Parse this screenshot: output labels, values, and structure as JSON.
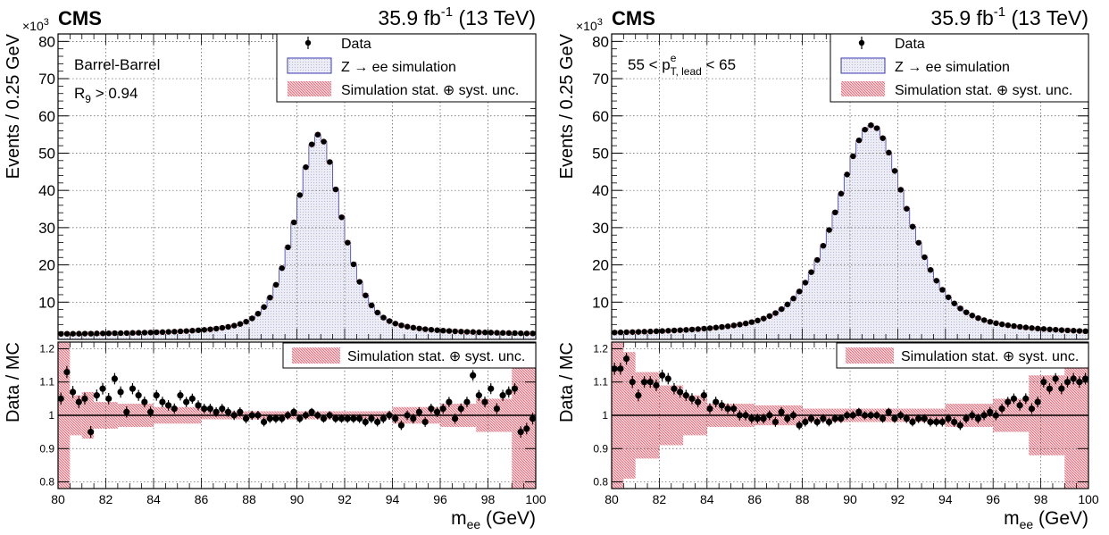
{
  "colors": {
    "data": "#000000",
    "simulation_fill": "#e6e6f2",
    "simulation_line": "#3b3bb3",
    "uncertainty": "#e06070",
    "grid": "#555555"
  },
  "chart_data": [
    {
      "type": "line",
      "experiment": "CMS",
      "lumi": "35.9 fb",
      "lumi_exp": "-1",
      "energy": "(13 TeV)",
      "selection_lines": [
        {
          "text": "Barrel-Barrel",
          "sub": "",
          "sup": "",
          "tail": ""
        },
        {
          "text": "R",
          "sub": "9",
          "sup": "",
          "tail": " > 0.94"
        }
      ],
      "legend": [
        "Data",
        "Z → ee simulation",
        "Simulation stat. ⊕ syst. unc."
      ],
      "ratio_legend": "Simulation stat. ⊕ syst. unc.",
      "xlabel": "m",
      "xlabel_sub": "ee",
      "xlabel_tail": " (GeV)",
      "ylabel": "Events / 0.25 GeV",
      "ratio_ylabel": "Data / MC",
      "y_multiplier": "×10",
      "y_multiplier_exp": "3",
      "xlim": [
        80,
        100
      ],
      "ylim": [
        0,
        82
      ],
      "ratio_ylim": [
        0.78,
        1.22
      ],
      "x_ticks": [
        80,
        82,
        84,
        86,
        88,
        90,
        92,
        94,
        96,
        98,
        100
      ],
      "y_ticks": [
        10,
        20,
        30,
        40,
        50,
        60,
        70,
        80
      ],
      "ratio_ticks": [
        0.8,
        0.9,
        1,
        1.1,
        1.2
      ],
      "ratio_tick_labels": [
        "0.8",
        "0.9",
        "1",
        "1.1",
        "1.2"
      ],
      "shape": {
        "peak": 55,
        "mean": 90.9,
        "gamma": 2.1,
        "sigma": 1.05,
        "mix": 0.55,
        "base": 1.2
      },
      "ratio_points": [
        {
          "x": 80.12,
          "y": 1.05
        },
        {
          "x": 80.37,
          "y": 1.13
        },
        {
          "x": 80.62,
          "y": 1.07
        },
        {
          "x": 80.87,
          "y": 1.04
        },
        {
          "x": 81.12,
          "y": 1.05
        },
        {
          "x": 81.37,
          "y": 0.95
        },
        {
          "x": 81.62,
          "y": 1.06
        },
        {
          "x": 81.87,
          "y": 1.08
        },
        {
          "x": 82.12,
          "y": 1.05
        },
        {
          "x": 82.37,
          "y": 1.11
        },
        {
          "x": 82.62,
          "y": 1.07
        },
        {
          "x": 82.87,
          "y": 1.01
        },
        {
          "x": 83.12,
          "y": 1.08
        },
        {
          "x": 83.37,
          "y": 1.06
        },
        {
          "x": 83.62,
          "y": 1.04
        },
        {
          "x": 83.87,
          "y": 1.01
        },
        {
          "x": 84.12,
          "y": 1.06
        },
        {
          "x": 84.37,
          "y": 1.04
        },
        {
          "x": 84.62,
          "y": 1.03
        },
        {
          "x": 84.87,
          "y": 1.02
        },
        {
          "x": 85.12,
          "y": 1.06
        },
        {
          "x": 85.37,
          "y": 1.04
        },
        {
          "x": 85.62,
          "y": 1.05
        },
        {
          "x": 85.87,
          "y": 1.03
        },
        {
          "x": 86.12,
          "y": 1.02
        },
        {
          "x": 86.37,
          "y": 1.02
        },
        {
          "x": 86.62,
          "y": 1.01
        },
        {
          "x": 86.87,
          "y": 1.02
        },
        {
          "x": 87.12,
          "y": 1.01
        },
        {
          "x": 87.37,
          "y": 1.0
        },
        {
          "x": 87.62,
          "y": 1.01
        },
        {
          "x": 87.87,
          "y": 0.99
        },
        {
          "x": 88.12,
          "y": 1.0
        },
        {
          "x": 88.37,
          "y": 1.0
        },
        {
          "x": 88.62,
          "y": 0.98
        },
        {
          "x": 88.87,
          "y": 0.99
        },
        {
          "x": 89.12,
          "y": 0.99
        },
        {
          "x": 89.37,
          "y": 0.99
        },
        {
          "x": 89.62,
          "y": 1.0
        },
        {
          "x": 89.87,
          "y": 1.01
        },
        {
          "x": 90.12,
          "y": 0.99
        },
        {
          "x": 90.37,
          "y": 1.0
        },
        {
          "x": 90.62,
          "y": 1.01
        },
        {
          "x": 90.87,
          "y": 1.0
        },
        {
          "x": 91.12,
          "y": 0.99
        },
        {
          "x": 91.37,
          "y": 1.0
        },
        {
          "x": 91.62,
          "y": 0.99
        },
        {
          "x": 91.87,
          "y": 0.99
        },
        {
          "x": 92.12,
          "y": 0.99
        },
        {
          "x": 92.37,
          "y": 0.99
        },
        {
          "x": 92.62,
          "y": 0.99
        },
        {
          "x": 92.87,
          "y": 0.98
        },
        {
          "x": 93.12,
          "y": 0.99
        },
        {
          "x": 93.37,
          "y": 0.98
        },
        {
          "x": 93.62,
          "y": 0.99
        },
        {
          "x": 93.87,
          "y": 1.0
        },
        {
          "x": 94.12,
          "y": 0.99
        },
        {
          "x": 94.37,
          "y": 0.97
        },
        {
          "x": 94.62,
          "y": 1.0
        },
        {
          "x": 94.87,
          "y": 0.99
        },
        {
          "x": 95.12,
          "y": 1.01
        },
        {
          "x": 95.37,
          "y": 0.98
        },
        {
          "x": 95.62,
          "y": 1.02
        },
        {
          "x": 95.87,
          "y": 1.01
        },
        {
          "x": 96.12,
          "y": 1.02
        },
        {
          "x": 96.37,
          "y": 1.04
        },
        {
          "x": 96.62,
          "y": 0.99
        },
        {
          "x": 96.87,
          "y": 1.02
        },
        {
          "x": 97.12,
          "y": 1.04
        },
        {
          "x": 97.37,
          "y": 1.12
        },
        {
          "x": 97.62,
          "y": 1.06
        },
        {
          "x": 97.87,
          "y": 1.04
        },
        {
          "x": 98.12,
          "y": 1.08
        },
        {
          "x": 98.37,
          "y": 1.02
        },
        {
          "x": 98.62,
          "y": 1.06
        },
        {
          "x": 98.87,
          "y": 1.07
        },
        {
          "x": 99.12,
          "y": 1.08
        },
        {
          "x": 99.37,
          "y": 0.95
        },
        {
          "x": 99.62,
          "y": 0.96
        },
        {
          "x": 99.87,
          "y": 0.99
        }
      ],
      "ratio_band": [
        {
          "x0": 80.0,
          "x1": 80.5,
          "half": 0.22
        },
        {
          "x0": 80.5,
          "x1": 81.0,
          "half": 0.06
        },
        {
          "x0": 81.0,
          "x1": 81.5,
          "half": 0.07
        },
        {
          "x0": 81.5,
          "x1": 82.5,
          "half": 0.04
        },
        {
          "x0": 82.5,
          "x1": 84.0,
          "half": 0.035
        },
        {
          "x0": 84.0,
          "x1": 86.0,
          "half": 0.025
        },
        {
          "x0": 86.0,
          "x1": 94.0,
          "half": 0.012
        },
        {
          "x0": 94.0,
          "x1": 96.0,
          "half": 0.025
        },
        {
          "x0": 96.0,
          "x1": 97.5,
          "half": 0.035
        },
        {
          "x0": 97.5,
          "x1": 99.0,
          "half": 0.05
        },
        {
          "x0": 99.0,
          "x1": 100.0,
          "half": 0.22
        }
      ]
    },
    {
      "type": "line",
      "experiment": "CMS",
      "lumi": "35.9 fb",
      "lumi_exp": "-1",
      "energy": "(13 TeV)",
      "selection_lines": [
        {
          "text": "55 < p",
          "sub": "T, lead",
          "sup": "e",
          "tail": " < 65"
        }
      ],
      "legend": [
        "Data",
        "Z → ee simulation",
        "Simulation stat. ⊕ syst. unc."
      ],
      "ratio_legend": "Simulation stat. ⊕ syst. unc.",
      "xlabel": "m",
      "xlabel_sub": "ee",
      "xlabel_tail": " (GeV)",
      "ylabel": "Events / 0.25 GeV",
      "ratio_ylabel": "Data / MC",
      "y_multiplier": "×10",
      "y_multiplier_exp": "3",
      "xlim": [
        80,
        100
      ],
      "ylim": [
        0,
        82
      ],
      "ratio_ylim": [
        0.78,
        1.22
      ],
      "x_ticks": [
        80,
        82,
        84,
        86,
        88,
        90,
        92,
        94,
        96,
        98,
        100
      ],
      "y_ticks": [
        10,
        20,
        30,
        40,
        50,
        60,
        70,
        80
      ],
      "ratio_ticks": [
        0.8,
        0.9,
        1,
        1.1,
        1.2
      ],
      "ratio_tick_labels": [
        "0.8",
        "0.9",
        "1",
        "1.1",
        "1.2"
      ],
      "shape": {
        "peak": 57.5,
        "mean": 90.9,
        "gamma": 3.4,
        "sigma": 1.6,
        "mix": 0.6,
        "base": 1.0
      },
      "ratio_points": [
        {
          "x": 80.12,
          "y": 1.14
        },
        {
          "x": 80.37,
          "y": 1.14
        },
        {
          "x": 80.62,
          "y": 1.17
        },
        {
          "x": 80.87,
          "y": 1.1
        },
        {
          "x": 81.12,
          "y": 1.06
        },
        {
          "x": 81.37,
          "y": 1.1
        },
        {
          "x": 81.62,
          "y": 1.1
        },
        {
          "x": 81.87,
          "y": 1.09
        },
        {
          "x": 82.12,
          "y": 1.12
        },
        {
          "x": 82.37,
          "y": 1.11
        },
        {
          "x": 82.62,
          "y": 1.08
        },
        {
          "x": 82.87,
          "y": 1.07
        },
        {
          "x": 83.12,
          "y": 1.06
        },
        {
          "x": 83.37,
          "y": 1.05
        },
        {
          "x": 83.62,
          "y": 1.04
        },
        {
          "x": 83.87,
          "y": 1.06
        },
        {
          "x": 84.12,
          "y": 1.02
        },
        {
          "x": 84.37,
          "y": 1.04
        },
        {
          "x": 84.62,
          "y": 1.03
        },
        {
          "x": 84.87,
          "y": 1.02
        },
        {
          "x": 85.12,
          "y": 1.02
        },
        {
          "x": 85.37,
          "y": 1.0
        },
        {
          "x": 85.62,
          "y": 1.0
        },
        {
          "x": 85.87,
          "y": 0.99
        },
        {
          "x": 86.12,
          "y": 0.99
        },
        {
          "x": 86.37,
          "y": 0.99
        },
        {
          "x": 86.62,
          "y": 1.0
        },
        {
          "x": 86.87,
          "y": 0.98
        },
        {
          "x": 87.12,
          "y": 1.01
        },
        {
          "x": 87.37,
          "y": 0.99
        },
        {
          "x": 87.62,
          "y": 1.0
        },
        {
          "x": 87.87,
          "y": 0.97
        },
        {
          "x": 88.12,
          "y": 0.98
        },
        {
          "x": 88.37,
          "y": 0.99
        },
        {
          "x": 88.62,
          "y": 0.98
        },
        {
          "x": 88.87,
          "y": 0.99
        },
        {
          "x": 89.12,
          "y": 0.98
        },
        {
          "x": 89.37,
          "y": 0.99
        },
        {
          "x": 89.62,
          "y": 0.99
        },
        {
          "x": 89.87,
          "y": 1.0
        },
        {
          "x": 90.12,
          "y": 1.0
        },
        {
          "x": 90.37,
          "y": 1.01
        },
        {
          "x": 90.62,
          "y": 1.0
        },
        {
          "x": 90.87,
          "y": 1.0
        },
        {
          "x": 91.12,
          "y": 1.0
        },
        {
          "x": 91.37,
          "y": 0.99
        },
        {
          "x": 91.62,
          "y": 1.01
        },
        {
          "x": 91.87,
          "y": 0.99
        },
        {
          "x": 92.12,
          "y": 1.0
        },
        {
          "x": 92.37,
          "y": 0.99
        },
        {
          "x": 92.62,
          "y": 0.98
        },
        {
          "x": 92.87,
          "y": 0.99
        },
        {
          "x": 93.12,
          "y": 0.99
        },
        {
          "x": 93.37,
          "y": 0.98
        },
        {
          "x": 93.62,
          "y": 0.98
        },
        {
          "x": 93.87,
          "y": 0.98
        },
        {
          "x": 94.12,
          "y": 0.99
        },
        {
          "x": 94.37,
          "y": 0.98
        },
        {
          "x": 94.62,
          "y": 0.97
        },
        {
          "x": 94.87,
          "y": 0.99
        },
        {
          "x": 95.12,
          "y": 1.0
        },
        {
          "x": 95.37,
          "y": 0.99
        },
        {
          "x": 95.62,
          "y": 1.0
        },
        {
          "x": 95.87,
          "y": 1.01
        },
        {
          "x": 96.12,
          "y": 1.0
        },
        {
          "x": 96.37,
          "y": 1.02
        },
        {
          "x": 96.62,
          "y": 1.04
        },
        {
          "x": 96.87,
          "y": 1.05
        },
        {
          "x": 97.12,
          "y": 1.03
        },
        {
          "x": 97.37,
          "y": 1.05
        },
        {
          "x": 97.62,
          "y": 1.02
        },
        {
          "x": 97.87,
          "y": 1.04
        },
        {
          "x": 98.12,
          "y": 1.1
        },
        {
          "x": 98.37,
          "y": 1.08
        },
        {
          "x": 98.62,
          "y": 1.11
        },
        {
          "x": 98.87,
          "y": 1.08
        },
        {
          "x": 99.12,
          "y": 1.1
        },
        {
          "x": 99.37,
          "y": 1.11
        },
        {
          "x": 99.62,
          "y": 1.1
        },
        {
          "x": 99.87,
          "y": 1.11
        }
      ],
      "ratio_band": [
        {
          "x0": 80.0,
          "x1": 80.5,
          "half": 0.22
        },
        {
          "x0": 80.5,
          "x1": 81.0,
          "half": 0.19
        },
        {
          "x0": 81.0,
          "x1": 82.0,
          "half": 0.13
        },
        {
          "x0": 82.0,
          "x1": 83.0,
          "half": 0.09
        },
        {
          "x0": 83.0,
          "x1": 84.0,
          "half": 0.06
        },
        {
          "x0": 84.0,
          "x1": 86.0,
          "half": 0.035
        },
        {
          "x0": 86.0,
          "x1": 88.0,
          "half": 0.03
        },
        {
          "x0": 88.0,
          "x1": 94.0,
          "half": 0.02
        },
        {
          "x0": 94.0,
          "x1": 96.0,
          "half": 0.035
        },
        {
          "x0": 96.0,
          "x1": 97.5,
          "half": 0.05
        },
        {
          "x0": 97.5,
          "x1": 99.0,
          "half": 0.12
        },
        {
          "x0": 99.0,
          "x1": 100.0,
          "half": 0.22
        }
      ]
    }
  ]
}
